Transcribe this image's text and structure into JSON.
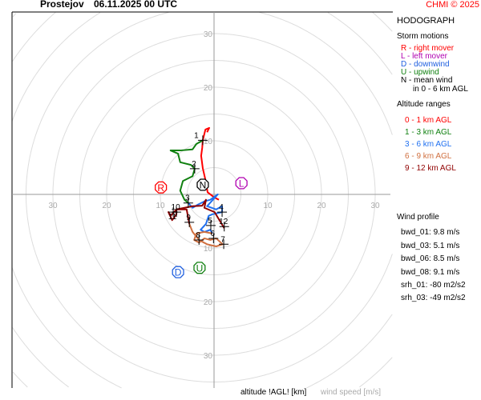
{
  "header": {
    "station": "Prostejov",
    "datetime": "06.11.2025 00 UTC",
    "copyright": "CHMI © 2025"
  },
  "legend": {
    "title": "HODOGRAPH",
    "storm_motions_title": "Storm motions",
    "storm_motions": [
      {
        "text": "R - right mover",
        "color": "#ff0000"
      },
      {
        "text": "L - left mover",
        "color": "#b000b0"
      },
      {
        "text": "D - downwind",
        "color": "#2060e0"
      },
      {
        "text": "U - upwind",
        "color": "#108010"
      },
      {
        "text": "N - mean wind",
        "color": "#000000"
      }
    ],
    "mean_wind_note": "in 0 - 6 km AGL",
    "altitude_title": "Altitude ranges",
    "altitude_ranges": [
      {
        "text": "0 - 1 km AGL",
        "color": "#ff0000"
      },
      {
        "text": "1 - 3 km AGL",
        "color": "#108010"
      },
      {
        "text": "3 - 6 km AGL",
        "color": "#2070f0"
      },
      {
        "text": "6 - 9 km AGL",
        "color": "#d07040"
      },
      {
        "text": "9 - 12 km AGL",
        "color": "#900000"
      }
    ],
    "wind_profile_title": "Wind profile",
    "wind_profile": [
      "bwd_01: 9.8 m/s",
      "bwd_03: 5.1 m/s",
      "bwd_06: 8.5 m/s",
      "bwd_08: 9.1 m/s"
    ],
    "helicity": [
      "srh_01: -80 m2/s2",
      "srh_03: -49 m2/s2"
    ]
  },
  "footer": {
    "altitude_label": "altitude !AGL! [km]",
    "speed_label": "wind speed [m/s]"
  },
  "chart_data": {
    "type": "line",
    "title": "HODOGRAPH",
    "xlabel": "wind speed [m/s]",
    "ylabel": "",
    "xlim": [
      -38,
      33
    ],
    "ylim": [
      -36,
      34
    ],
    "rings_step": 5,
    "x_ticks": [
      {
        "v": -30,
        "label": "30"
      },
      {
        "v": -20,
        "label": "20"
      },
      {
        "v": -10,
        "label": "10"
      },
      {
        "v": 10,
        "label": "10"
      },
      {
        "v": 20,
        "label": "20"
      },
      {
        "v": 30,
        "label": "30"
      }
    ],
    "y_ticks": [
      {
        "v": 30,
        "label": "30"
      },
      {
        "v": 20,
        "label": "20"
      },
      {
        "v": 10,
        "label": "10"
      },
      {
        "v": -10,
        "label": "10"
      },
      {
        "v": -20,
        "label": "20"
      },
      {
        "v": -30,
        "label": "30"
      }
    ],
    "series": [
      {
        "name": "0 - 1 km AGL",
        "color": "#ff0000",
        "points": [
          [
            0.9,
            -1.0
          ],
          [
            0.1,
            -0.6
          ],
          [
            -1.2,
            0.4
          ],
          [
            -1.6,
            2.7
          ],
          [
            -2.1,
            4.9
          ],
          [
            -2.4,
            7.2
          ],
          [
            -2.2,
            8.7
          ],
          [
            -2.1,
            10.1
          ],
          [
            -1.6,
            12.1
          ],
          [
            -0.9,
            12.4
          ],
          [
            -1.3,
            11.6
          ]
        ]
      },
      {
        "name": "1 - 3 km AGL",
        "color": "#108010",
        "points": [
          [
            -2.1,
            10.1
          ],
          [
            -3.3,
            9.4
          ],
          [
            -4.0,
            8.4
          ],
          [
            -6.3,
            8.2
          ],
          [
            -8.1,
            8.2
          ],
          [
            -6.7,
            7.6
          ],
          [
            -6.3,
            6.0
          ],
          [
            -4.3,
            5.5
          ],
          [
            -3.6,
            4.8
          ],
          [
            -4.0,
            3.4
          ],
          [
            -5.8,
            2.5
          ],
          [
            -6.3,
            0.7
          ],
          [
            -5.5,
            -1.0
          ],
          [
            -4.8,
            -1.6
          ]
        ]
      },
      {
        "name": "3 - 6 km AGL",
        "color": "#2070f0",
        "points": [
          [
            -4.8,
            -1.6
          ],
          [
            -4.0,
            -2.5
          ],
          [
            -3.0,
            -1.9
          ],
          [
            -1.8,
            -1.3
          ],
          [
            -0.7,
            -1.0
          ],
          [
            0.7,
            0.0
          ],
          [
            -1.3,
            -2.2
          ],
          [
            0.4,
            -2.8
          ],
          [
            1.5,
            -2.2
          ],
          [
            1.5,
            -3.3
          ],
          [
            -0.3,
            -3.7
          ],
          [
            -1.0,
            -4.0
          ],
          [
            -1.5,
            -5.5
          ],
          [
            -2.5,
            -6.6
          ],
          [
            -1.8,
            -7.0
          ],
          [
            -0.7,
            -6.6
          ],
          [
            -0.3,
            -7.3
          ]
        ]
      },
      {
        "name": "6 - 9 km AGL",
        "color": "#d07040",
        "points": [
          [
            -0.3,
            -7.3
          ],
          [
            -1.8,
            -7.0
          ],
          [
            -3.3,
            -7.3
          ],
          [
            -3.7,
            -8.5
          ],
          [
            -2.8,
            -9.0
          ],
          [
            -1.8,
            -8.2
          ],
          [
            -0.7,
            -8.5
          ],
          [
            0.4,
            -8.2
          ],
          [
            1.6,
            -9.3
          ],
          [
            0.4,
            -9.7
          ],
          [
            -1.3,
            -9.3
          ],
          [
            -2.8,
            -8.5
          ],
          [
            -4.0,
            -7.0
          ],
          [
            -4.6,
            -5.5
          ]
        ]
      },
      {
        "name": "9 - 12 km AGL",
        "color": "#900000",
        "points": [
          [
            -4.6,
            -5.5
          ],
          [
            -5.1,
            -2.8
          ],
          [
            -7.0,
            -2.8
          ],
          [
            -8.1,
            -4.0
          ],
          [
            -8.5,
            -3.3
          ],
          [
            -7.8,
            -4.8
          ],
          [
            -7.0,
            -3.7
          ],
          [
            -7.0,
            -2.8
          ],
          [
            -4.0,
            -2.2
          ],
          [
            -2.2,
            -2.1
          ],
          [
            -1.5,
            -1.0
          ],
          [
            -1.8,
            -2.5
          ],
          [
            0.1,
            -3.3
          ],
          [
            1.9,
            -6.3
          ]
        ]
      }
    ],
    "height_markers": [
      {
        "label": "1",
        "u": -2.1,
        "v": 10.1
      },
      {
        "label": "2",
        "u": -3.6,
        "v": 4.8
      },
      {
        "label": "3",
        "u": -4.8,
        "v": -1.6
      },
      {
        "label": "4",
        "u": 1.5,
        "v": -3.3
      },
      {
        "label": "5",
        "u": -0.6,
        "v": -5.8
      },
      {
        "label": "6",
        "u": -0.1,
        "v": -8.2
      },
      {
        "label": "7",
        "u": 1.8,
        "v": -9.3
      },
      {
        "label": "8",
        "u": -2.8,
        "v": -8.5
      },
      {
        "label": "9",
        "u": -4.6,
        "v": -5.2
      },
      {
        "label": "10",
        "u": -7.0,
        "v": -3.3
      },
      {
        "label": "11",
        "u": -7.6,
        "v": -3.3
      },
      {
        "label": "12",
        "u": 1.9,
        "v": -6.0
      }
    ],
    "storm_motions": [
      {
        "label": "R",
        "u": -9.9,
        "v": 1.3,
        "color": "#ff0000"
      },
      {
        "label": "L",
        "u": 5.1,
        "v": 2.1,
        "color": "#b000b0"
      },
      {
        "label": "D",
        "u": -6.7,
        "v": -14.5,
        "color": "#2060e0"
      },
      {
        "label": "U",
        "u": -2.7,
        "v": -13.7,
        "color": "#108010"
      },
      {
        "label": "N",
        "u": -2.1,
        "v": 1.8,
        "color": "#000000"
      }
    ]
  }
}
